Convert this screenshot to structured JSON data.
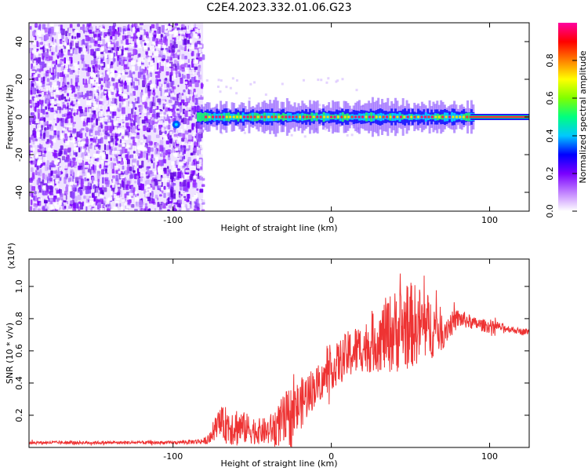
{
  "title": "C2E4.2023.332.01.06.G23",
  "chart_data": [
    {
      "type": "heatmap",
      "title": "C2E4.2023.332.01.06.G23",
      "xlabel": "Height of straight line (km)",
      "ylabel": "Frequency (Hz)",
      "xlim": [
        -191,
        125
      ],
      "ylim": [
        -50,
        50
      ],
      "xticks": [
        -100,
        0,
        100
      ],
      "xtick_labels": [
        "-100",
        "0",
        "100"
      ],
      "yticks": [
        -40,
        -20,
        0,
        20,
        40
      ],
      "ytick_labels": [
        "-40",
        "-20",
        "0",
        "20",
        "40"
      ],
      "noise_region_x": [
        -191,
        -81
      ],
      "signal_start_x": -85,
      "signal_center_hz": 0,
      "colorbar": {
        "label": "Normalized spectral amplitude",
        "range": [
          0.0,
          1.0
        ],
        "ticks": [
          0.0,
          0.2,
          0.4,
          0.6,
          0.8
        ],
        "tick_labels": [
          "0.0",
          "0.2",
          "0.4",
          "0.6",
          "0.8"
        ],
        "colors": [
          "#ffffff",
          "#c080ff",
          "#7a00ff",
          "#0000ff",
          "#00c8ff",
          "#00ff80",
          "#80ff00",
          "#ffff00",
          "#ff8000",
          "#ff0000",
          "#ff00a0"
        ]
      }
    },
    {
      "type": "line",
      "xlabel": "Height of straight line (km)",
      "ylabel": "SNR (10 * v/v)",
      "y_multiplier": "(x10⁴)",
      "xlim": [
        -191,
        125
      ],
      "ylim": [
        0,
        1.17
      ],
      "xticks": [
        -100,
        0,
        100
      ],
      "xtick_labels": [
        "-100",
        "0",
        "100"
      ],
      "yticks": [
        0.2,
        0.4,
        0.6,
        0.8,
        1.0
      ],
      "ytick_labels": [
        "0.2",
        "0.4",
        "0.6",
        "0.8",
        "1.0"
      ],
      "series": [
        {
          "name": "SNR",
          "color": "#ee3333",
          "x": [
            -191,
            -180,
            -160,
            -140,
            -120,
            -100,
            -88,
            -80,
            -76,
            -72,
            -66,
            -60,
            -55,
            -50,
            -45,
            -40,
            -35,
            -30,
            -25,
            -20,
            -15,
            -10,
            -5,
            0,
            5,
            10,
            15,
            20,
            25,
            30,
            35,
            40,
            45,
            50,
            55,
            60,
            65,
            70,
            75,
            80,
            85,
            90,
            95,
            100,
            105,
            110,
            115,
            120,
            125
          ],
          "y": [
            0.03,
            0.03,
            0.03,
            0.03,
            0.03,
            0.03,
            0.035,
            0.04,
            0.06,
            0.15,
            0.14,
            0.13,
            0.12,
            0.11,
            0.1,
            0.1,
            0.13,
            0.16,
            0.2,
            0.26,
            0.33,
            0.38,
            0.42,
            0.48,
            0.53,
            0.57,
            0.6,
            0.62,
            0.64,
            0.67,
            0.7,
            0.72,
            0.74,
            0.76,
            0.76,
            0.75,
            0.74,
            0.73,
            0.76,
            0.8,
            0.79,
            0.77,
            0.76,
            0.75,
            0.75,
            0.74,
            0.73,
            0.72,
            0.72
          ],
          "noise_amp": [
            0.01,
            0.01,
            0.01,
            0.01,
            0.01,
            0.01,
            0.015,
            0.02,
            0.04,
            0.08,
            0.12,
            0.13,
            0.1,
            0.09,
            0.08,
            0.09,
            0.12,
            0.17,
            0.2,
            0.16,
            0.15,
            0.12,
            0.11,
            0.12,
            0.14,
            0.15,
            0.16,
            0.15,
            0.18,
            0.2,
            0.24,
            0.26,
            0.27,
            0.27,
            0.25,
            0.22,
            0.18,
            0.13,
            0.08,
            0.06,
            0.05,
            0.04,
            0.04,
            0.04,
            0.03,
            0.025,
            0.02,
            0.02,
            0.02
          ]
        }
      ]
    }
  ]
}
